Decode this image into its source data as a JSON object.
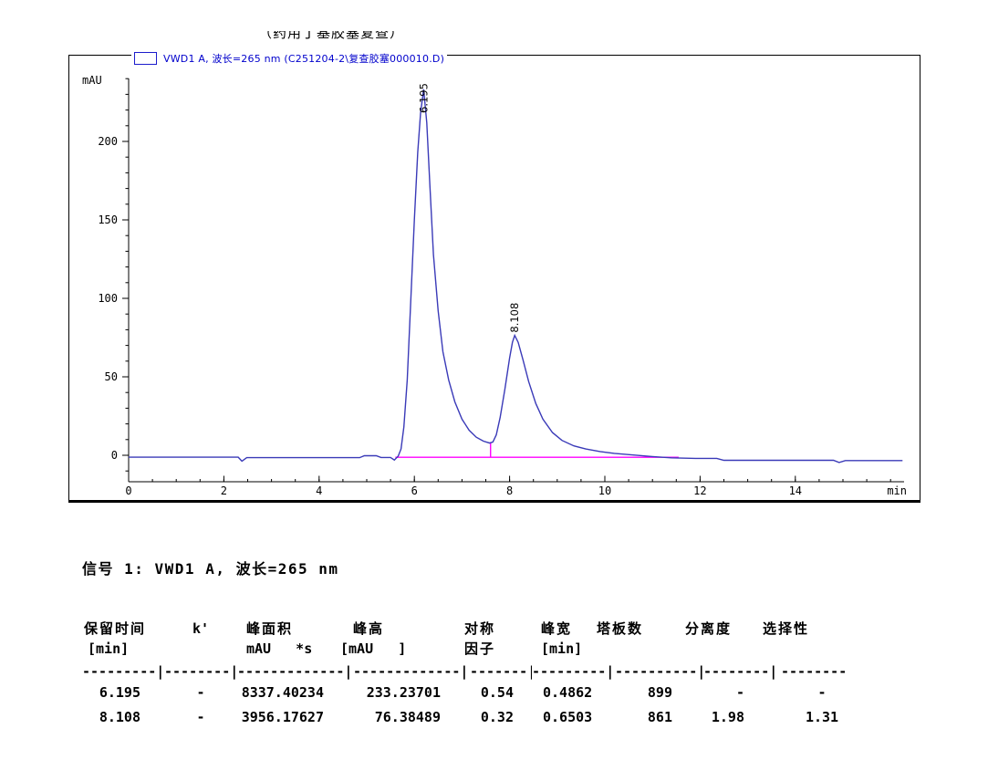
{
  "page": {
    "clipped_text": "（药用丁基胶塞复查）"
  },
  "chart": {
    "legend_label": "VWD1 A, 波长=265 nm (C251204-2\\复查胶塞000010.D)"
  },
  "chart_data": {
    "type": "line",
    "title": "VWD1 A, 波长=265 nm (C251204-2\\复查胶塞000010.D)",
    "xlabel": "min",
    "ylabel": "mAU",
    "xlim": [
      0,
      16.3
    ],
    "ylim": [
      -17,
      240
    ],
    "x_major_ticks": [
      0,
      2,
      4,
      6,
      8,
      10,
      12,
      14
    ],
    "x_minor_step": 0.5,
    "y_major_ticks": [
      0,
      50,
      100,
      150,
      200
    ],
    "y_minor_step": 10,
    "grid": false,
    "legend_position": "top-left",
    "line_color": "#3a3ab8",
    "baseline_color": "#ff00ff",
    "peaks": [
      {
        "rt": 6.195,
        "height": 233.23701,
        "label": "6.195"
      },
      {
        "rt": 8.108,
        "height": 76.38489,
        "label": "8.108"
      }
    ],
    "integration_baseline": {
      "from": 5.6,
      "to": 11.55,
      "y": -1.3,
      "dropline_t": 7.6,
      "dropline_top": 8.0
    },
    "series": [
      {
        "name": "VWD1 A, 265 nm signal",
        "points": [
          [
            0,
            -1.2
          ],
          [
            2.3,
            -1.2
          ],
          [
            2.38,
            -3.8
          ],
          [
            2.48,
            -1.5
          ],
          [
            4.85,
            -1.5
          ],
          [
            4.95,
            -0.3
          ],
          [
            5.2,
            -0.3
          ],
          [
            5.3,
            -1.4
          ],
          [
            5.5,
            -1.4
          ],
          [
            5.58,
            -3.0
          ],
          [
            5.66,
            -0.5
          ],
          [
            5.72,
            4
          ],
          [
            5.78,
            18
          ],
          [
            5.85,
            48
          ],
          [
            5.92,
            95
          ],
          [
            6.0,
            150
          ],
          [
            6.07,
            193
          ],
          [
            6.13,
            218
          ],
          [
            6.195,
            233.2
          ],
          [
            6.26,
            212
          ],
          [
            6.33,
            170
          ],
          [
            6.4,
            128
          ],
          [
            6.5,
            92
          ],
          [
            6.6,
            66
          ],
          [
            6.72,
            48
          ],
          [
            6.85,
            34
          ],
          [
            7.0,
            23
          ],
          [
            7.15,
            16
          ],
          [
            7.3,
            11.5
          ],
          [
            7.45,
            9
          ],
          [
            7.58,
            7.8
          ],
          [
            7.65,
            8.5
          ],
          [
            7.72,
            13
          ],
          [
            7.8,
            24
          ],
          [
            7.9,
            42
          ],
          [
            8.0,
            62
          ],
          [
            8.06,
            72
          ],
          [
            8.108,
            76.4
          ],
          [
            8.18,
            72
          ],
          [
            8.28,
            61
          ],
          [
            8.4,
            47
          ],
          [
            8.55,
            33
          ],
          [
            8.7,
            23
          ],
          [
            8.9,
            14.5
          ],
          [
            9.1,
            9.5
          ],
          [
            9.35,
            6
          ],
          [
            9.6,
            4
          ],
          [
            9.9,
            2.4
          ],
          [
            10.2,
            1.2
          ],
          [
            10.6,
            0.2
          ],
          [
            11.0,
            -0.8
          ],
          [
            11.4,
            -1.6
          ],
          [
            11.9,
            -2.0
          ],
          [
            12.35,
            -2.0
          ],
          [
            12.5,
            -3.2
          ],
          [
            13.2,
            -3.2
          ],
          [
            14.8,
            -3.2
          ],
          [
            14.92,
            -4.6
          ],
          [
            15.05,
            -3.4
          ],
          [
            16.25,
            -3.4
          ]
        ]
      }
    ]
  },
  "signal_line": "信号 1: VWD1 A, 波长=265 nm",
  "table": {
    "headers_line1": [
      "保留时间",
      "k'",
      "峰面积",
      "峰高",
      "对称",
      "峰宽",
      "塔板数",
      "分离度",
      "选择性"
    ],
    "headers_line2": [
      "[min]",
      "",
      "mAU   *s",
      "[mAU   ]",
      "因子",
      "[min]",
      "",
      "",
      ""
    ],
    "separator": [
      "---------|",
      "--------|",
      "-------------|",
      "-------------|",
      "-------|",
      "---------|",
      "----------|",
      "--------|",
      "--------"
    ],
    "rows": [
      [
        "6.195",
        "-",
        "8337.40234",
        "233.23701",
        "0.54",
        "0.4862",
        "899",
        "-",
        "-"
      ],
      [
        "8.108",
        "-",
        "3956.17627",
        "76.38489",
        "0.32",
        "0.6503",
        "861",
        "1.98",
        "1.31"
      ]
    ]
  }
}
